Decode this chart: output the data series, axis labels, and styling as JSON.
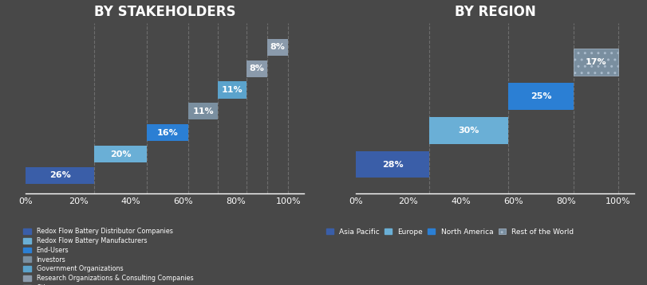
{
  "background_color": "#484848",
  "left_title": "BY STAKEHOLDERS",
  "right_title": "BY REGION",
  "stakeholders": {
    "labels": [
      "Redox Flow Battery Distributor Companies",
      "Redox Flow Battery Manufacturers",
      "End-Users",
      "Investors",
      "Government Organizations",
      "Research Organizations & Consulting Companies",
      "Others"
    ],
    "values": [
      26,
      20,
      16,
      11,
      11,
      8,
      8
    ],
    "colors": [
      "#3a5ea8",
      "#6aafd6",
      "#2b7fd4",
      "#7a8fa0",
      "#5ba3cc",
      "#8a9aab",
      "#8a9aab"
    ]
  },
  "regions": {
    "labels": [
      "Asia Pacific",
      "Europe",
      "North America",
      "Rest of the World"
    ],
    "values": [
      28,
      30,
      25,
      17
    ],
    "colors": [
      "#3a5ea8",
      "#6aafd6",
      "#2b7fd4",
      "#8a9aab"
    ],
    "hatch": [
      null,
      null,
      null,
      ".."
    ]
  },
  "axis_label_color": "#ffffff",
  "title_color": "#ffffff",
  "grid_color": "#777777",
  "tick_vals": [
    0,
    20,
    40,
    60,
    80,
    100
  ]
}
